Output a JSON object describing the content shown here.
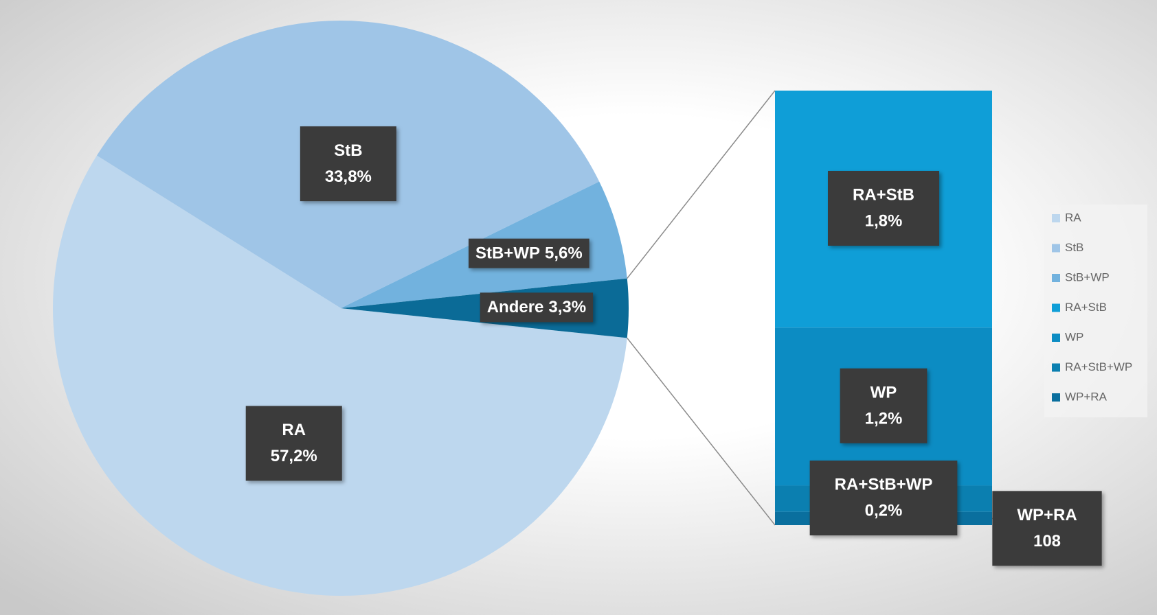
{
  "chart_data": {
    "type": "pie_of_bar",
    "categories": [
      "RA",
      "StB",
      "StB+WP",
      "Andere"
    ],
    "values": [
      57.2,
      33.8,
      5.6,
      3.3
    ],
    "value_labels": [
      "57,2%",
      "33,8%",
      "5,6%",
      "3,3%"
    ],
    "colors": [
      "#bdd7ee",
      "#9fc5e7",
      "#72b2de",
      "#0b6b97"
    ],
    "bar": {
      "categories": [
        "RA+StB",
        "WP",
        "RA+StB+WP",
        "WP+RA"
      ],
      "values": [
        1.8,
        1.2,
        0.2,
        0.1
      ],
      "value_labels": [
        "1,8%",
        "1,2%",
        "0,2%",
        null
      ],
      "colors": [
        "#0f9ed7",
        "#0c8cc3",
        "#0b7fb0",
        "#0a6f9e"
      ],
      "wp_ra_count": 108
    },
    "legend": [
      "RA",
      "StB",
      "StB+WP",
      "RA+StB",
      "WP",
      "RA+StB+WP",
      "WP+RA"
    ],
    "legend_colors": [
      "#bdd7ee",
      "#9fc5e7",
      "#72b2de",
      "#0f9ed7",
      "#0c8cc3",
      "#0b7fb0",
      "#0a6f9e"
    ],
    "legend_position": "right"
  }
}
